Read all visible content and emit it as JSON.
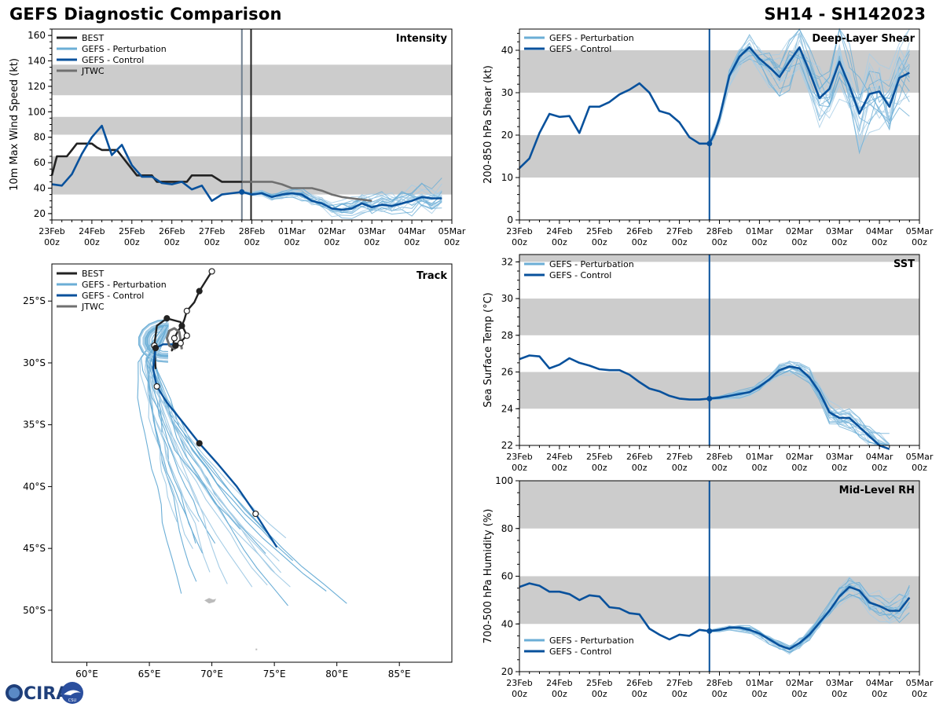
{
  "header": {
    "title": "GEFS Diagnostic Comparison",
    "storm_id": "SH14 - SH142023"
  },
  "logo": {
    "text": "CIRA",
    "sub": "CSU"
  },
  "colors": {
    "best": "#222222",
    "perturbation": "#6baed6",
    "perturbation_light": "#a6cde6",
    "control": "#08519c",
    "jtwc": "#707070",
    "band": "#cccccc",
    "land": "#bbbbbb"
  },
  "time_axis": {
    "days": [
      "23Feb",
      "24Feb",
      "25Feb",
      "26Feb",
      "27Feb",
      "28Feb",
      "01Mar",
      "02Mar",
      "03Mar",
      "04Mar",
      "05Mar"
    ],
    "hour_label": "00z",
    "init_time": 4.75
  },
  "chart_data": [
    {
      "id": "intensity",
      "type": "line",
      "title": "Intensity",
      "ylabel": "10m Max Wind Speed (kt)",
      "ylim": [
        15,
        165
      ],
      "yticks": [
        20,
        40,
        60,
        80,
        100,
        120,
        140,
        160
      ],
      "bands": [
        [
          35,
          65
        ],
        [
          82,
          96
        ],
        [
          113,
          137
        ]
      ],
      "vlines": [
        {
          "x": 4.75,
          "color": "#708090"
        },
        {
          "x": 4.98,
          "color": "#222222"
        }
      ],
      "legend": [
        "BEST",
        "GEFS - Perturbation",
        "GEFS - Control",
        "JTWC"
      ],
      "series": [
        {
          "name": "BEST",
          "x": [
            0,
            0.125,
            0.25,
            0.375,
            0.5,
            0.625,
            0.75,
            0.875,
            1.0,
            1.125,
            1.25,
            1.375,
            1.5,
            1.625,
            1.75,
            1.875,
            2.0,
            2.125,
            2.25,
            2.375,
            2.5,
            2.625,
            2.75,
            2.875,
            3.0,
            3.125,
            3.25,
            3.375,
            3.5,
            3.625,
            3.75,
            3.875,
            4.0,
            4.25,
            4.5,
            4.75,
            4.98
          ],
          "values": [
            50,
            65,
            65,
            65,
            70,
            75,
            75,
            75,
            75,
            72,
            70,
            70,
            70,
            70,
            65,
            60,
            55,
            50,
            50,
            50,
            50,
            45,
            45,
            45,
            45,
            45,
            45,
            45,
            50,
            50,
            50,
            50,
            50,
            45,
            45,
            45,
            45
          ]
        },
        {
          "name": "GEFS - Control",
          "x": [
            0,
            0.25,
            0.5,
            0.75,
            1.0,
            1.25,
            1.5,
            1.75,
            2.0,
            2.25,
            2.5,
            2.75,
            3.0,
            3.25,
            3.5,
            3.75,
            4.0,
            4.25,
            4.5,
            4.75,
            5.0,
            5.25,
            5.5,
            5.75,
            6.0,
            6.25,
            6.5,
            6.75,
            7.0,
            7.25,
            7.5,
            7.75,
            8.0,
            8.25,
            8.5,
            8.75,
            9.0,
            9.25,
            9.5,
            9.75
          ],
          "values": [
            43,
            42,
            51,
            67,
            80,
            89,
            66,
            74,
            58,
            49,
            49,
            44,
            43,
            45,
            39,
            42,
            30,
            35,
            36,
            37,
            35,
            36,
            33,
            35,
            36,
            35,
            30,
            28,
            24,
            23,
            24,
            28,
            25,
            27,
            26,
            28,
            30,
            33,
            32,
            32
          ]
        },
        {
          "name": "JTWC",
          "x": [
            4.75,
            5.0,
            5.25,
            5.5,
            5.75,
            6.0,
            6.25,
            6.5,
            6.75,
            7.0,
            7.25,
            7.5,
            7.75,
            8.0
          ],
          "values": [
            45,
            45,
            45,
            45,
            43,
            40,
            40,
            40,
            38,
            35,
            33,
            32,
            31,
            30
          ]
        }
      ]
    },
    {
      "id": "shear",
      "type": "line",
      "title": "Deep-Layer Shear",
      "ylabel": "200-850 hPa Shear (kt)",
      "ylim": [
        0,
        45
      ],
      "yticks": [
        0,
        10,
        20,
        30,
        40
      ],
      "bands": [
        [
          10,
          20
        ],
        [
          30,
          40
        ]
      ],
      "vlines": [
        {
          "x": 4.75,
          "color": "#08519c"
        }
      ],
      "legend": [
        "GEFS - Perturbation",
        "GEFS - Control"
      ],
      "series": [
        {
          "name": "GEFS - Control",
          "x": [
            0,
            0.25,
            0.5,
            0.75,
            1.0,
            1.25,
            1.5,
            1.75,
            2.0,
            2.25,
            2.5,
            2.75,
            3.0,
            3.25,
            3.5,
            3.75,
            4.0,
            4.25,
            4.5,
            4.75,
            4.87,
            5.0,
            5.25,
            5.5,
            5.75,
            6.0,
            6.25,
            6.5,
            6.75,
            7.0,
            7.25,
            7.5,
            7.75,
            8.0,
            8.25,
            8.5,
            8.75,
            9.0,
            9.25,
            9.5,
            9.75
          ],
          "values": [
            12.2,
            14.5,
            20.5,
            25,
            24.3,
            24.5,
            20.5,
            26.7,
            26.7,
            27.8,
            29.6,
            30.7,
            32.2,
            30,
            25.7,
            25,
            23,
            19.5,
            18,
            18,
            20.2,
            24,
            34,
            38.5,
            40.7,
            38,
            36,
            33.7,
            37.3,
            40.7,
            35,
            28.7,
            30.9,
            37.3,
            31.6,
            25.1,
            29.7,
            30.3,
            26.7,
            33.5,
            34.7
          ]
        }
      ]
    },
    {
      "id": "sst",
      "type": "line",
      "title": "SST",
      "ylabel": "Sea Surface Temp (°C)",
      "ylim": [
        22,
        32.4
      ],
      "yticks": [
        22,
        24,
        26,
        28,
        30,
        32
      ],
      "bands": [
        [
          24,
          26
        ],
        [
          28,
          30
        ],
        [
          32,
          32.4
        ]
      ],
      "vlines": [
        {
          "x": 4.75,
          "color": "#08519c"
        }
      ],
      "legend": [
        "GEFS - Perturbation",
        "GEFS - Control"
      ],
      "series": [
        {
          "name": "GEFS - Control",
          "x": [
            0,
            0.25,
            0.5,
            0.75,
            1.0,
            1.25,
            1.5,
            1.75,
            2.0,
            2.25,
            2.5,
            2.75,
            3.0,
            3.25,
            3.5,
            3.75,
            4.0,
            4.25,
            4.5,
            4.75,
            5.0,
            5.25,
            5.5,
            5.75,
            6.0,
            6.25,
            6.5,
            6.75,
            7.0,
            7.25,
            7.5,
            7.75,
            8.0,
            8.25,
            8.5,
            8.75,
            9.0,
            9.25
          ],
          "values": [
            26.7,
            26.9,
            26.85,
            26.2,
            26.4,
            26.75,
            26.5,
            26.35,
            26.15,
            26.1,
            26.1,
            25.85,
            25.45,
            25.1,
            24.95,
            24.7,
            24.55,
            24.5,
            24.5,
            24.55,
            24.6,
            24.7,
            24.8,
            24.9,
            25.2,
            25.6,
            26.1,
            26.3,
            26.2,
            25.7,
            24.9,
            23.8,
            23.5,
            23.5,
            23,
            22.5,
            22,
            21.8
          ]
        }
      ]
    },
    {
      "id": "rh",
      "type": "line",
      "title": "Mid-Level RH",
      "ylabel": "700-500 hPa Humidity (%)",
      "ylim": [
        20,
        100
      ],
      "yticks": [
        20,
        40,
        60,
        80,
        100
      ],
      "bands": [
        [
          40,
          60
        ],
        [
          80,
          100
        ]
      ],
      "vlines": [
        {
          "x": 4.75,
          "color": "#08519c"
        }
      ],
      "legend": [
        "GEFS - Perturbation",
        "GEFS - Control"
      ],
      "series": [
        {
          "name": "GEFS - Control",
          "x": [
            0,
            0.25,
            0.5,
            0.75,
            1.0,
            1.25,
            1.5,
            1.75,
            2.0,
            2.25,
            2.5,
            2.75,
            3.0,
            3.25,
            3.5,
            3.75,
            4.0,
            4.25,
            4.5,
            4.75,
            5.0,
            5.25,
            5.5,
            5.75,
            6.0,
            6.25,
            6.5,
            6.75,
            7.0,
            7.25,
            7.5,
            7.75,
            8.0,
            8.25,
            8.5,
            8.75,
            9.0,
            9.25,
            9.5,
            9.75
          ],
          "values": [
            55.5,
            57,
            56,
            53.5,
            53.5,
            52.5,
            50,
            52,
            51.5,
            47,
            46.5,
            44.5,
            44,
            38,
            35.5,
            33.5,
            35.5,
            35,
            37.5,
            37,
            37.5,
            38.5,
            38.5,
            37.5,
            36,
            33.5,
            31,
            29.5,
            32,
            35.5,
            40.5,
            45.5,
            51.5,
            55.5,
            54,
            49,
            47.5,
            45.5,
            45.5,
            51
          ]
        }
      ]
    },
    {
      "id": "track",
      "type": "scatter",
      "title": "Track",
      "xlabel": "Longitude",
      "ylabel": "Latitude",
      "xlim": [
        57.2,
        89.2
      ],
      "ylim": [
        -54.2,
        -22.0
      ],
      "xticks": [
        60,
        65,
        70,
        75,
        80,
        85
      ],
      "xtick_labels": [
        "60°E",
        "65°E",
        "70°E",
        "75°E",
        "80°E",
        "85°E"
      ],
      "yticks": [
        -25,
        -30,
        -35,
        -40,
        -45,
        -50
      ],
      "ytick_labels": [
        "25°S",
        "30°S",
        "35°S",
        "40°S",
        "45°S",
        "50°S"
      ],
      "legend": [
        "BEST",
        "GEFS - Perturbation",
        "GEFS - Control",
        "JTWC"
      ],
      "series": [
        {
          "name": "BEST",
          "lon": [
            70.0,
            69.5,
            69.0,
            68.6,
            68.0,
            67.8,
            67.6,
            67.3,
            67.0,
            66.8,
            67.1,
            67.6,
            68.0,
            67.5,
            66.4,
            65.6,
            65.4,
            65.5
          ],
          "lat": [
            -22.6,
            -23.4,
            -24.2,
            -25.1,
            -25.8,
            -26.5,
            -27.0,
            -27.4,
            -28.0,
            -29.0,
            -28.6,
            -28.2,
            -27.8,
            -26.7,
            -26.4,
            -27.0,
            -28.6,
            -30.5
          ]
        },
        {
          "name": "GEFS - Control",
          "lon": [
            67.5,
            66.9,
            66.1,
            65.5,
            65.4,
            65.3,
            65.6,
            66.4,
            67.6,
            69.0,
            70.5,
            72.0,
            73.5,
            75.2
          ],
          "lat": [
            -28.4,
            -28.5,
            -28.5,
            -28.8,
            -29.6,
            -30.5,
            -31.9,
            -33.2,
            -34.7,
            -36.5,
            -38.2,
            -40.0,
            -42.2,
            -44.9
          ]
        },
        {
          "name": "JTWC",
          "lon": [
            67.6,
            67.5,
            67.4,
            67.0,
            66.6,
            66.4,
            66.6,
            67.1
          ],
          "lat": [
            -28.9,
            -28.2,
            -27.5,
            -27.2,
            -27.4,
            -28.0,
            -28.6,
            -28.9
          ]
        }
      ]
    }
  ]
}
